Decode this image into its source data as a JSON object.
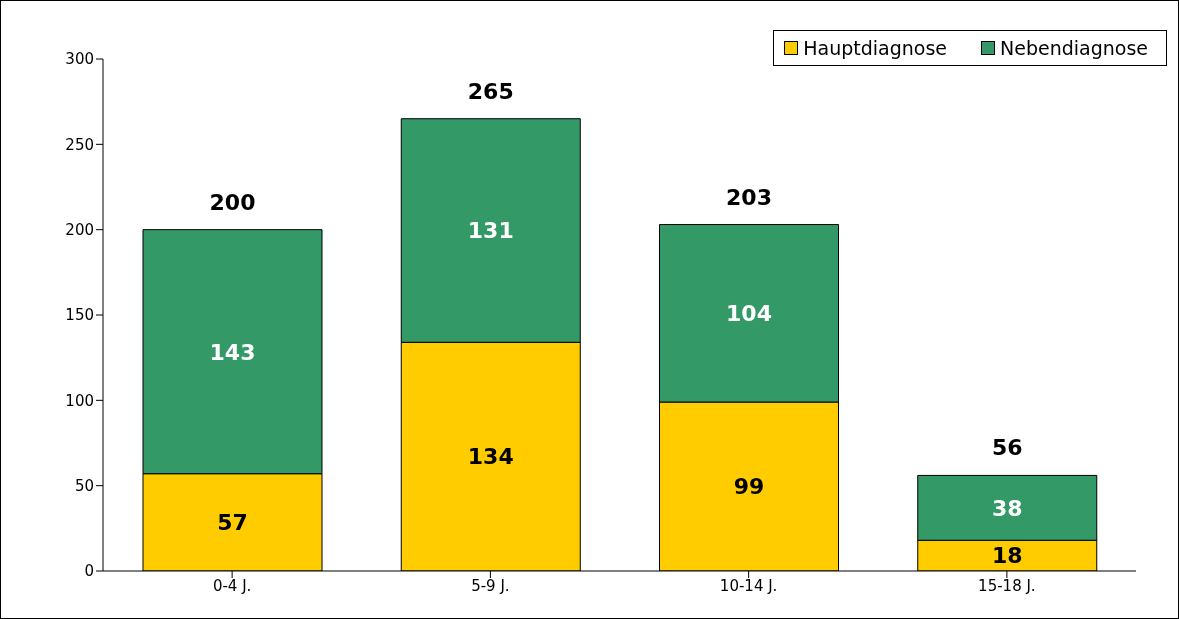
{
  "chart_data": {
    "type": "bar",
    "stacked": true,
    "categories": [
      "0-4 J.",
      "5-9 J.",
      "10-14 J.",
      "15-18 J."
    ],
    "series": [
      {
        "name": "Hauptdiagnose",
        "color": "#ffcc00",
        "values": [
          57,
          134,
          99,
          18
        ]
      },
      {
        "name": "Nebendiagnose",
        "color": "#339966",
        "values": [
          143,
          131,
          104,
          38
        ]
      }
    ],
    "totals": [
      "200",
      "265",
      "203",
      "56"
    ],
    "ylim": [
      0,
      300
    ],
    "yticks": [
      0,
      50,
      100,
      150,
      200,
      250,
      300
    ],
    "grid": false,
    "legend": "top right",
    "data_labels": true
  }
}
